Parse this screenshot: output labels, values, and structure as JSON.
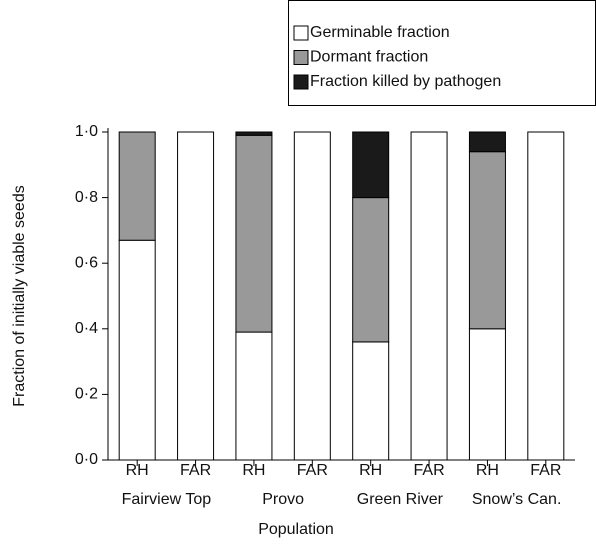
{
  "chart_data": {
    "type": "stacked_bar",
    "categories": [
      "RH",
      "FAR",
      "RH",
      "FAR",
      "RH",
      "FAR",
      "RH",
      "FAR"
    ],
    "groups": [
      "Fairview Top",
      "Provo",
      "Green River",
      "Snow’s Can."
    ],
    "xlabel": "Population",
    "ylabel": "Fraction of initially viable seeds",
    "series": [
      {
        "name": "Germinable fraction",
        "color": "#ffffff",
        "values": [
          0.67,
          1.0,
          0.39,
          1.0,
          0.36,
          1.0,
          0.4,
          1.0
        ]
      },
      {
        "name": "Dormant fraction",
        "color": "#999999",
        "values": [
          0.33,
          0,
          0.6,
          0,
          0.44,
          0,
          0.54,
          0
        ]
      },
      {
        "name": "Fraction killed by pathogen",
        "color": "#1a1a1a",
        "values": [
          0,
          0,
          0.01,
          0,
          0.2,
          0,
          0.06,
          0
        ]
      }
    ],
    "ylim": [
      0,
      1.0
    ],
    "yticks": [
      {
        "value": 0,
        "label": "0·0"
      },
      {
        "value": 0.2,
        "label": "0·2"
      },
      {
        "value": 0.4,
        "label": "0·4"
      },
      {
        "value": 0.6,
        "label": "0·6"
      },
      {
        "value": 0.8,
        "label": "0·8"
      },
      {
        "value": 1.0,
        "label": "1·0"
      }
    ],
    "legend_position": "top right"
  }
}
